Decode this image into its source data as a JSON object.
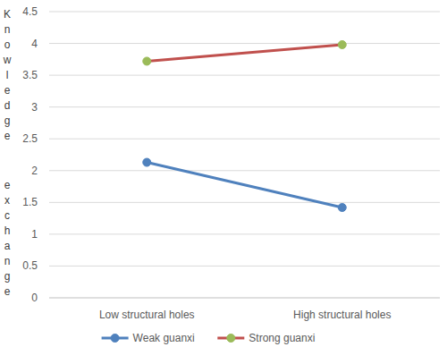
{
  "chart_data": {
    "type": "line",
    "y_label": "Knowledge exchange",
    "categories": [
      "Low structural holes",
      "High structural holes"
    ],
    "series": [
      {
        "name": "Weak guanxi",
        "color": "#4f81bd",
        "colors": [
          "#4f81bd",
          "#4f81bd"
        ],
        "marker": "circle",
        "values": [
          2.13,
          1.42
        ]
      },
      {
        "name": "Strong guanxi",
        "color": "#c0504d",
        "colors": [
          "#9bbb59",
          "#9bbb59"
        ],
        "marker": "circle",
        "values": [
          3.72,
          3.98
        ]
      }
    ],
    "ylim": [
      0,
      4.5
    ],
    "yticks": [
      0,
      0.5,
      1,
      1.5,
      2,
      2.5,
      3,
      3.5,
      4,
      4.5
    ],
    "grid": true,
    "legend": "bottom"
  }
}
